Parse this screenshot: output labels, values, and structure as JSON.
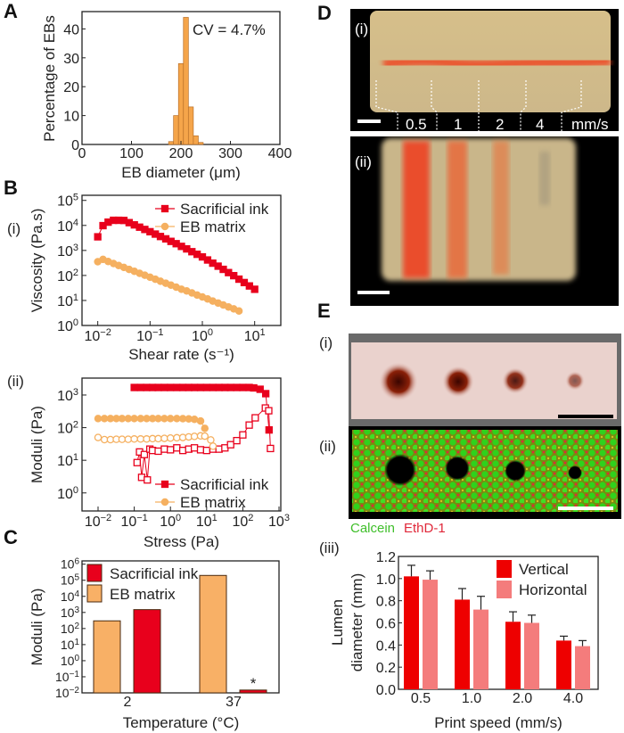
{
  "panels": {
    "A": "A",
    "B": "B",
    "C": "C",
    "D": "D",
    "E": "E"
  },
  "sublabels": {
    "b_i": "(i)",
    "b_ii": "(ii)",
    "d_i": "(i)",
    "d_ii": "(ii)",
    "e_i": "(i)",
    "e_ii": "(ii)",
    "e_iii": "(iii)"
  },
  "photo_d": {
    "speed_labels": [
      "0.5",
      "1",
      "2",
      "4"
    ],
    "unit": "mm/s",
    "colors": {
      "gel": "#d9c08e",
      "ink": "#f0401e",
      "background": "#000000"
    }
  },
  "photo_e": {
    "stain_calcein": "Calcein",
    "stain_ethd": "EthD-1",
    "colors": {
      "calcein": "#3fbf2a",
      "ethd": "#e0283a",
      "tissue": "#ecd0cb",
      "lumen": "#7a1a0a"
    }
  },
  "chart_data": [
    {
      "panel": "A",
      "type": "bar",
      "xlabel": "EB diameter (μm)",
      "ylabel": "Percentage of EBs",
      "annotation": "CV = 4.7%",
      "xlim": [
        0,
        400
      ],
      "ylim": [
        0,
        46
      ],
      "xticks": [
        0,
        100,
        200,
        300,
        400
      ],
      "yticks": [
        0,
        10,
        20,
        30,
        40
      ],
      "bin_width": 10,
      "bins": [
        180,
        190,
        200,
        210,
        220,
        230,
        240
      ],
      "values": [
        1,
        10,
        28,
        44,
        13,
        3,
        0.7
      ],
      "color": "#f5a54a"
    },
    {
      "panel": "B(i)",
      "type": "scatter",
      "xscale": "log",
      "yscale": "log",
      "xlabel": "Shear rate (s⁻¹)",
      "ylabel": "Viscosity (Pa.s)",
      "xlim": [
        0.005,
        31.6
      ],
      "ylim": [
        1,
        160000
      ],
      "xticks": [
        0.01,
        0.1,
        1,
        10
      ],
      "yticks": [
        1,
        10,
        100,
        1000,
        10000,
        100000
      ],
      "legend": "top-right",
      "series": [
        {
          "name": "Sacrificial ink",
          "color": "#e8001c",
          "marker": "square-filled",
          "x": [
            0.01,
            0.0126,
            0.0158,
            0.02,
            0.0251,
            0.0316,
            0.0398,
            0.0501,
            0.0631,
            0.0794,
            0.1,
            0.126,
            0.158,
            0.2,
            0.251,
            0.316,
            0.398,
            0.501,
            0.631,
            0.794,
            1,
            1.26,
            1.58,
            2,
            2.51,
            3.16,
            3.98,
            5.01,
            6.31,
            7.94,
            10
          ],
          "y": [
            3500,
            9800,
            13500,
            16000,
            16000,
            15800,
            12900,
            10500,
            8500,
            6900,
            5600,
            4500,
            3600,
            2900,
            2300,
            1860,
            1450,
            1150,
            890,
            700,
            550,
            415,
            310,
            235,
            175,
            130,
            98,
            71,
            52,
            38,
            28
          ]
        },
        {
          "name": "EB matrix",
          "color": "#f5b060",
          "marker": "circle-filled",
          "x": [
            0.01,
            0.0126,
            0.0158,
            0.02,
            0.0251,
            0.0316,
            0.0398,
            0.0501,
            0.0631,
            0.0794,
            0.1,
            0.126,
            0.158,
            0.2,
            0.251,
            0.316,
            0.398,
            0.501,
            0.631,
            0.794,
            1,
            1.26,
            1.58,
            2,
            2.51,
            3.16,
            3.98,
            5.01
          ],
          "y": [
            355,
            440,
            360,
            300,
            250,
            210,
            175,
            147,
            122,
            102,
            85,
            71,
            59,
            49,
            41,
            34,
            28,
            24,
            20,
            16.5,
            13.8,
            11.5,
            9.5,
            7.9,
            6.6,
            5.5,
            4.6,
            3.8
          ]
        }
      ]
    },
    {
      "panel": "B(ii)",
      "type": "scatter",
      "xscale": "log",
      "yscale": "log",
      "xlabel": "Stress (Pa)",
      "ylabel": "Moduli (Pa)",
      "xlim": [
        0.0036,
        1120
      ],
      "ylim": [
        0.28,
        3300
      ],
      "xticks": [
        0.01,
        0.1,
        1,
        10,
        100,
        1000
      ],
      "yticks": [
        1,
        10,
        100,
        1000
      ],
      "legend": "bottom-right",
      "series": [
        {
          "name": "Sacrificial ink",
          "quantity": "G'",
          "color": "#e8001c",
          "marker": "square-filled",
          "legend": true,
          "x": [
            0.1,
            0.15,
            0.22,
            0.32,
            0.46,
            0.68,
            1,
            1.5,
            2.2,
            3.2,
            4.6,
            6.8,
            10,
            15,
            22,
            32,
            46,
            68,
            100,
            150,
            200,
            300,
            430,
            530
          ],
          "y": [
            1700,
            1700,
            1700,
            1700,
            1700,
            1700,
            1700,
            1700,
            1700,
            1700,
            1700,
            1700,
            1700,
            1700,
            1700,
            1700,
            1700,
            1700,
            1700,
            1700,
            1650,
            1500,
            1100,
            85
          ]
        },
        {
          "name": "Sacrificial ink",
          "quantity": "G''",
          "color": "#e8001c",
          "marker": "square-open",
          "legend": false,
          "x": [
            0.12,
            0.14,
            0.16,
            0.19,
            0.23,
            0.27,
            0.32,
            0.46,
            0.68,
            1,
            1.5,
            2.2,
            3.2,
            4.6,
            6.8,
            10,
            15,
            22,
            32,
            46,
            68,
            100,
            150,
            220,
            420,
            520,
            580
          ],
          "y": [
            8.5,
            18,
            3,
            15,
            2.5,
            22,
            20,
            19,
            22,
            21,
            24,
            20,
            22,
            24,
            21,
            20,
            22,
            22,
            24,
            30,
            40,
            60,
            120,
            200,
            400,
            330,
            23
          ]
        },
        {
          "name": "EB matrix",
          "quantity": "G'",
          "color": "#f5b060",
          "marker": "circle-filled",
          "legend": true,
          "x": [
            0.01,
            0.015,
            0.022,
            0.032,
            0.046,
            0.068,
            0.1,
            0.15,
            0.22,
            0.32,
            0.46,
            0.68,
            1,
            1.5,
            2.2,
            3.2,
            4.6,
            6.8,
            8.9
          ],
          "y": [
            190,
            190,
            190,
            190,
            190,
            190,
            190,
            190,
            190,
            190,
            190,
            190,
            190,
            190,
            188,
            185,
            180,
            160,
            95
          ]
        },
        {
          "name": "EB matrix",
          "quantity": "G''",
          "color": "#f5b060",
          "marker": "circle-open",
          "legend": false,
          "x": [
            0.01,
            0.015,
            0.022,
            0.032,
            0.046,
            0.068,
            0.1,
            0.15,
            0.22,
            0.32,
            0.46,
            0.68,
            1,
            1.5,
            2.2,
            3.2,
            4.6,
            6.8,
            8.9,
            13,
            15
          ],
          "y": [
            50,
            43,
            43,
            44,
            44,
            44,
            45,
            45,
            45,
            46,
            46,
            47,
            48,
            49,
            50,
            52,
            54,
            56,
            55,
            42,
            27
          ]
        }
      ]
    },
    {
      "panel": "C",
      "type": "bar",
      "yscale": "log",
      "xlabel": "Temperature (°C)",
      "ylabel": "Moduli (Pa)",
      "ylim": [
        0.01,
        1600000
      ],
      "yticks": [
        0.01,
        0.1,
        1,
        10,
        100,
        1000,
        10000,
        100000,
        1000000
      ],
      "categories": [
        "2",
        "37"
      ],
      "legend": "top-left",
      "annotation": "*",
      "series": [
        {
          "name": "Sacrificial ink",
          "color": "#e8001c",
          "values": [
            1500,
            0.015
          ]
        },
        {
          "name": "EB matrix",
          "color": "#f8b066",
          "values": [
            300,
            200000
          ]
        }
      ]
    },
    {
      "panel": "E(iii)",
      "type": "bar",
      "xlabel": "Print speed (mm/s)",
      "ylabel": [
        "Lumen",
        "diameter (mm)"
      ],
      "ylim": [
        0,
        1.2
      ],
      "yticks": [
        0.0,
        0.2,
        0.4,
        0.6,
        0.8,
        1.0,
        1.2
      ],
      "categories": [
        "0.5",
        "1.0",
        "2.0",
        "4.0"
      ],
      "legend": "top-right",
      "series": [
        {
          "name": "Vertical",
          "color": "#ee0000",
          "values": [
            1.02,
            0.81,
            0.61,
            0.44
          ],
          "error": [
            0.1,
            0.1,
            0.09,
            0.04
          ]
        },
        {
          "name": "Horizontal",
          "color": "#f47c7c",
          "values": [
            0.99,
            0.72,
            0.6,
            0.39
          ],
          "error": [
            0.08,
            0.12,
            0.07,
            0.05
          ]
        }
      ]
    }
  ]
}
